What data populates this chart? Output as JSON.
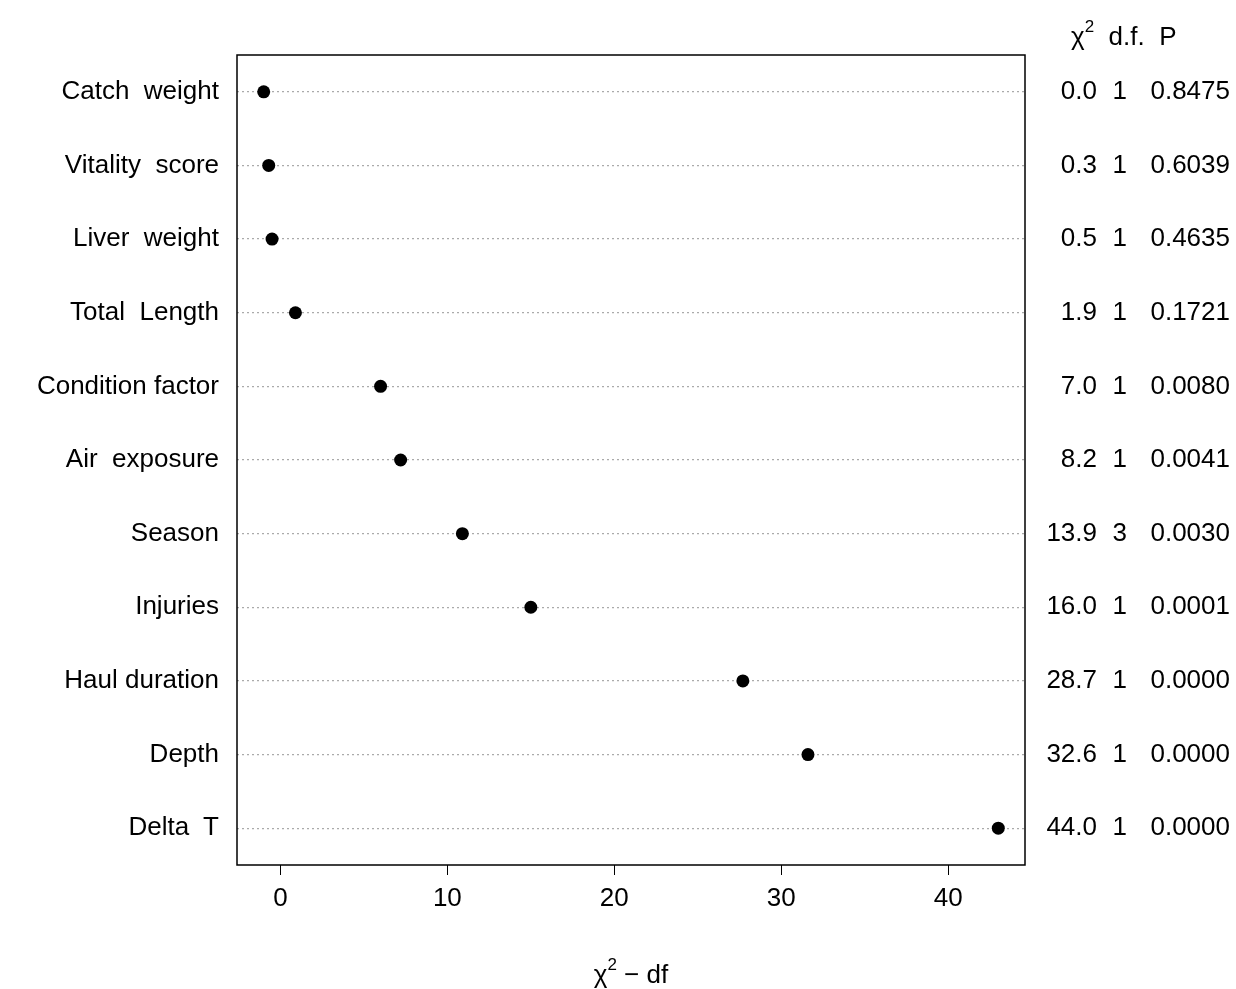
{
  "chart_data": {
    "type": "scatter",
    "orientation": "horizontal",
    "categories": [
      "Catch  weight",
      "Vitality  score",
      "Liver  weight",
      "Total  Length",
      "Condition factor",
      "Air  exposure",
      "Season",
      "Injuries",
      "Haul duration",
      "Depth",
      "Delta  T"
    ],
    "values": [
      -1.0,
      -0.7,
      -0.5,
      0.9,
      6.0,
      7.2,
      10.9,
      15.0,
      27.7,
      31.6,
      43.0
    ],
    "value_labels": [
      "0.0  1  0.8475",
      "0.3  1  0.6039",
      "0.5  1  0.4635",
      "1.9  1  0.1721",
      "7.0  1  0.0080",
      "8.2  1  0.0041",
      "13.9  3  0.0030",
      "16.0  1  0.0001",
      "28.7  1  0.0000",
      "32.6  1  0.0000",
      "44.0  1  0.0000"
    ],
    "annotations": [
      "χ$^{2}$  d.f.  P"
    ],
    "color": "#000000",
    "marker": "circle",
    "grid": "y",
    "xlim": [
      -2.6,
      44.6
    ],
    "xticks": [
      0,
      10,
      20,
      30,
      40
    ],
    "xlabel": "χ$^{2}$ − df"
  }
}
